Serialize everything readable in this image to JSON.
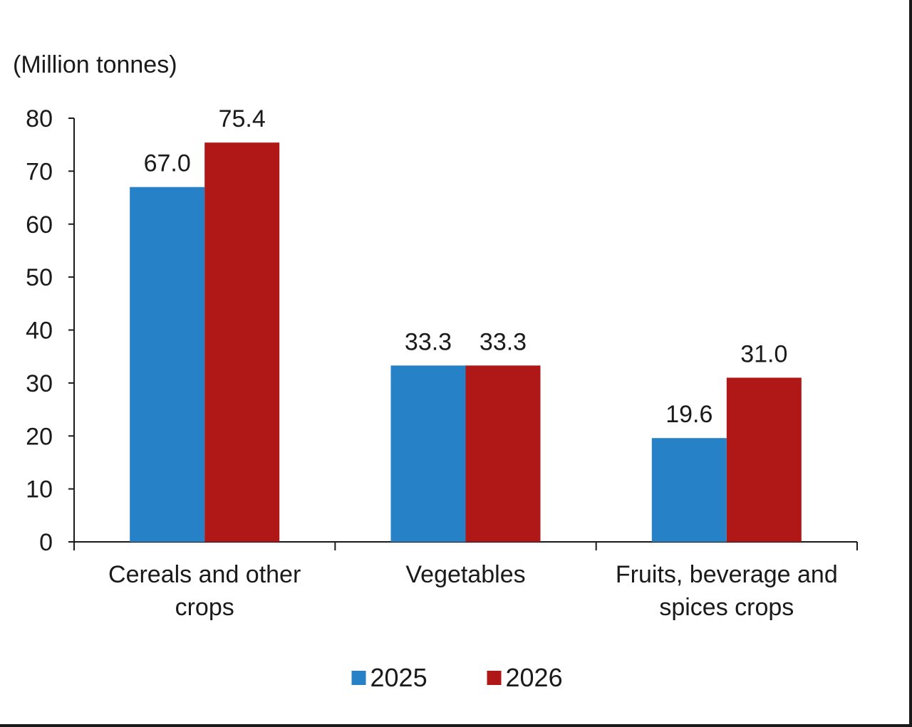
{
  "chart_data": {
    "type": "bar",
    "ylabel": "(Million tonnes)",
    "categories": [
      [
        "Cereals and other",
        "crops"
      ],
      [
        "Vegetables"
      ],
      [
        "Fruits, beverage and",
        "spices crops"
      ]
    ],
    "series": [
      {
        "name": "2025",
        "color": "#2781c6",
        "values": [
          67.0,
          33.3,
          19.6
        ]
      },
      {
        "name": "2026",
        "color": "#b01818",
        "values": [
          75.4,
          33.3,
          31.0
        ]
      }
    ],
    "ylim": [
      0,
      80
    ],
    "yticks": [
      0,
      10,
      20,
      30,
      40,
      50,
      60,
      70,
      80
    ],
    "value_format_decimals": 1,
    "grid": false,
    "legend_position": "bottom-center"
  }
}
